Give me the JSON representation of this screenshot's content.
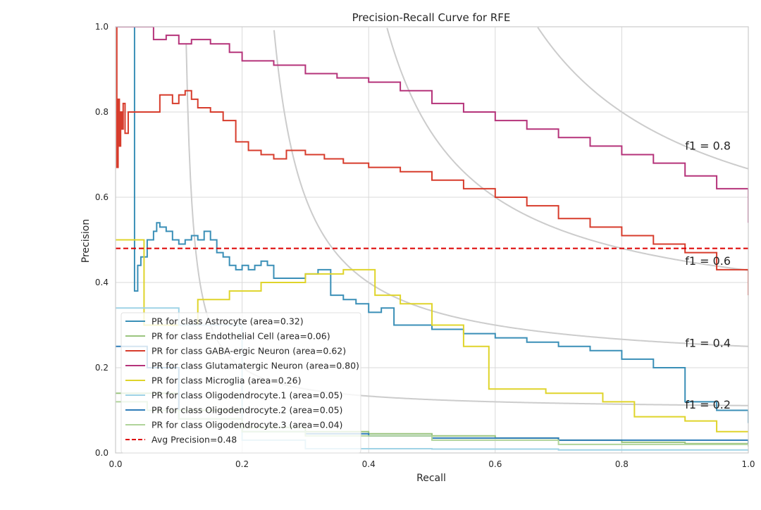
{
  "chart_data": {
    "type": "line",
    "title": "Precision-Recall Curve for RFE",
    "xlabel": "Recall",
    "ylabel": "Precision",
    "xlim": [
      0.0,
      1.0
    ],
    "ylim": [
      0.0,
      1.0
    ],
    "xticks": [
      "0.0",
      "0.2",
      "0.4",
      "0.6",
      "0.8",
      "1.0"
    ],
    "yticks": [
      "0.0",
      "0.2",
      "0.4",
      "0.6",
      "0.8",
      "1.0"
    ],
    "grid": true,
    "legend_position": "lower-left",
    "iso_f1_labels": [
      "f1 = 0.2",
      "f1 = 0.4",
      "f1 = 0.6",
      "f1 = 0.8"
    ],
    "iso_f1_values": [
      0.2,
      0.4,
      0.6,
      0.8
    ],
    "iso_f1_color": "#cccccc",
    "avg_precision": {
      "name": "Avg Precision=0.48",
      "value": 0.48,
      "color": "#dd0000",
      "style": "dashed"
    },
    "series": [
      {
        "name": "PR for class Astrocyte (area=0.32)",
        "color": "#3a8fb7",
        "x": [
          0.0,
          0.03,
          0.03,
          0.035,
          0.04,
          0.05,
          0.06,
          0.065,
          0.07,
          0.08,
          0.09,
          0.1,
          0.11,
          0.12,
          0.13,
          0.14,
          0.15,
          0.16,
          0.17,
          0.18,
          0.19,
          0.2,
          0.21,
          0.22,
          0.23,
          0.24,
          0.25,
          0.27,
          0.3,
          0.32,
          0.34,
          0.36,
          0.38,
          0.4,
          0.42,
          0.44,
          0.47,
          0.5,
          0.55,
          0.6,
          0.65,
          0.7,
          0.75,
          0.8,
          0.85,
          0.9,
          0.95,
          1.0
        ],
        "y": [
          1.0,
          1.0,
          0.38,
          0.44,
          0.46,
          0.5,
          0.52,
          0.54,
          0.53,
          0.52,
          0.5,
          0.49,
          0.5,
          0.51,
          0.5,
          0.52,
          0.5,
          0.47,
          0.46,
          0.44,
          0.43,
          0.44,
          0.43,
          0.44,
          0.45,
          0.44,
          0.41,
          0.41,
          0.42,
          0.43,
          0.37,
          0.36,
          0.35,
          0.33,
          0.34,
          0.3,
          0.3,
          0.29,
          0.28,
          0.27,
          0.26,
          0.25,
          0.24,
          0.22,
          0.2,
          0.12,
          0.1,
          0.07
        ]
      },
      {
        "name": "PR for class Endothelial Cell (area=0.06)",
        "color": "#9bc57f",
        "x": [
          0.0,
          0.05,
          0.1,
          0.2,
          0.3,
          0.4,
          0.5,
          0.6,
          0.7,
          0.8,
          0.9,
          1.0
        ],
        "y": [
          0.14,
          0.14,
          0.1,
          0.06,
          0.05,
          0.045,
          0.04,
          0.035,
          0.03,
          0.025,
          0.022,
          0.02
        ]
      },
      {
        "name": "PR for class GABA-ergic Neuron (area=0.62)",
        "color": "#d73c2c",
        "x": [
          0.0,
          0.002,
          0.004,
          0.006,
          0.008,
          0.01,
          0.012,
          0.015,
          0.02,
          0.03,
          0.05,
          0.07,
          0.09,
          0.1,
          0.11,
          0.12,
          0.13,
          0.15,
          0.17,
          0.19,
          0.21,
          0.23,
          0.25,
          0.27,
          0.3,
          0.33,
          0.36,
          0.4,
          0.45,
          0.5,
          0.55,
          0.6,
          0.65,
          0.7,
          0.75,
          0.8,
          0.85,
          0.9,
          0.95,
          1.0
        ],
        "y": [
          1.0,
          0.67,
          0.83,
          0.72,
          0.8,
          0.76,
          0.82,
          0.75,
          0.8,
          0.8,
          0.8,
          0.84,
          0.82,
          0.84,
          0.85,
          0.83,
          0.81,
          0.8,
          0.78,
          0.73,
          0.71,
          0.7,
          0.69,
          0.71,
          0.7,
          0.69,
          0.68,
          0.67,
          0.66,
          0.64,
          0.62,
          0.6,
          0.58,
          0.55,
          0.53,
          0.51,
          0.49,
          0.47,
          0.43,
          0.37
        ]
      },
      {
        "name": "PR for class Glutamatergic Neuron (area=0.80)",
        "color": "#b5337a",
        "x": [
          0.0,
          0.03,
          0.05,
          0.06,
          0.08,
          0.1,
          0.12,
          0.15,
          0.18,
          0.2,
          0.25,
          0.3,
          0.35,
          0.4,
          0.45,
          0.5,
          0.55,
          0.6,
          0.65,
          0.7,
          0.75,
          0.8,
          0.85,
          0.9,
          0.95,
          1.0
        ],
        "y": [
          1.0,
          1.0,
          1.0,
          0.97,
          0.98,
          0.96,
          0.97,
          0.96,
          0.94,
          0.92,
          0.91,
          0.89,
          0.88,
          0.87,
          0.85,
          0.82,
          0.8,
          0.78,
          0.76,
          0.74,
          0.72,
          0.7,
          0.68,
          0.65,
          0.62,
          0.54
        ]
      },
      {
        "name": "PR for class Microglia (area=0.26)",
        "color": "#dfd42b",
        "x": [
          0.0,
          0.045,
          0.045,
          0.13,
          0.13,
          0.18,
          0.18,
          0.23,
          0.23,
          0.3,
          0.3,
          0.36,
          0.36,
          0.41,
          0.41,
          0.45,
          0.45,
          0.5,
          0.5,
          0.55,
          0.55,
          0.59,
          0.59,
          0.68,
          0.68,
          0.77,
          0.77,
          0.82,
          0.82,
          0.9,
          0.9,
          0.95,
          0.95,
          1.0
        ],
        "y": [
          0.5,
          0.5,
          0.3,
          0.3,
          0.36,
          0.36,
          0.38,
          0.38,
          0.4,
          0.4,
          0.42,
          0.42,
          0.43,
          0.43,
          0.37,
          0.37,
          0.35,
          0.35,
          0.3,
          0.3,
          0.25,
          0.25,
          0.15,
          0.15,
          0.14,
          0.14,
          0.12,
          0.12,
          0.085,
          0.085,
          0.075,
          0.075,
          0.05,
          0.05
        ]
      },
      {
        "name": "PR for class Oligodendrocyte.1 (area=0.05)",
        "color": "#9fd3e6",
        "x": [
          0.0,
          0.1,
          0.1,
          0.2,
          0.3,
          0.5,
          0.7,
          1.0
        ],
        "y": [
          0.34,
          0.34,
          0.3,
          0.03,
          0.01,
          0.009,
          0.007,
          0.005
        ]
      },
      {
        "name": "PR for class Oligodendrocyte.2 (area=0.05)",
        "color": "#2e7cb8",
        "x": [
          0.0,
          0.03,
          0.05,
          0.1,
          0.2,
          0.3,
          0.4,
          0.5,
          0.7,
          1.0
        ],
        "y": [
          0.25,
          0.25,
          0.2,
          0.08,
          0.05,
          0.045,
          0.04,
          0.035,
          0.03,
          0.02
        ]
      },
      {
        "name": "PR for class Oligodendrocyte.3 (area=0.04)",
        "color": "#b0d49a",
        "x": [
          0.0,
          0.05,
          0.1,
          0.2,
          0.3,
          0.5,
          0.7,
          1.0
        ],
        "y": [
          0.12,
          0.1,
          0.08,
          0.05,
          0.04,
          0.03,
          0.02,
          0.015
        ]
      }
    ]
  }
}
